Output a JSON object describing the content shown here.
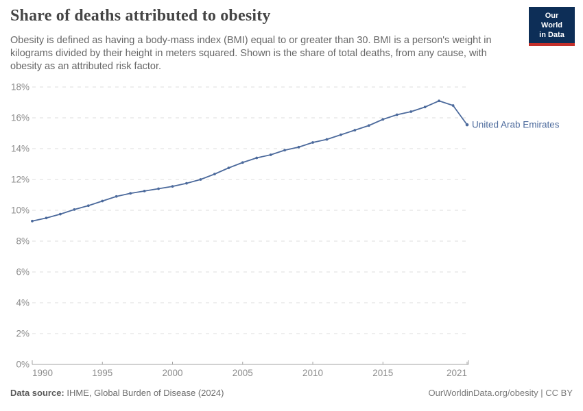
{
  "header": {
    "title": "Share of deaths attributed to obesity",
    "subtitle": "Obesity is defined as having a body-mass index (BMI) equal to or greater than 30. BMI is a person's weight in kilograms divided by their height in meters squared. Shown is the share of total deaths, from any cause, with obesity as an attributed risk factor.",
    "logo": {
      "line1": "Our World",
      "line2": "in Data"
    }
  },
  "chart_data": {
    "type": "line",
    "title": "Share of deaths attributed to obesity",
    "x": [
      1990,
      1991,
      1992,
      1993,
      1994,
      1995,
      1996,
      1997,
      1998,
      1999,
      2000,
      2001,
      2002,
      2003,
      2004,
      2005,
      2006,
      2007,
      2008,
      2009,
      2010,
      2011,
      2012,
      2013,
      2014,
      2015,
      2016,
      2017,
      2018,
      2019,
      2020,
      2021
    ],
    "series": [
      {
        "name": "United Arab Emirates",
        "values": [
          9.3,
          9.5,
          9.75,
          10.05,
          10.3,
          10.6,
          10.9,
          11.1,
          11.25,
          11.4,
          11.55,
          11.75,
          12.0,
          12.35,
          12.75,
          13.1,
          13.4,
          13.6,
          13.9,
          14.1,
          14.4,
          14.6,
          14.9,
          15.2,
          15.5,
          15.9,
          16.2,
          16.4,
          16.7,
          17.1,
          16.8,
          15.55
        ]
      }
    ],
    "ylim": [
      0,
      18
    ],
    "yticks": [
      0,
      2,
      4,
      6,
      8,
      10,
      12,
      14,
      16,
      18
    ],
    "ytick_suffix": "%",
    "xticks": [
      1990,
      1995,
      2000,
      2005,
      2010,
      2015,
      2021
    ],
    "grid": "horizontal-dashed",
    "legend": "line-end-label",
    "markers": true
  },
  "colors": {
    "line": "#4C6A9C",
    "entity_label": "#4C6A9C",
    "grid": "#dedede",
    "axis": "#a3a3a3",
    "tick_text": "#8c8c8c",
    "title": "#454545",
    "subtitle": "#666666",
    "logo_bg": "#0d2e57",
    "logo_accent": "#c4302b"
  },
  "footer": {
    "source_label": "Data source:",
    "source_value": "IHME, Global Burden of Disease (2024)",
    "link": "OurWorldinData.org/obesity | CC BY"
  }
}
